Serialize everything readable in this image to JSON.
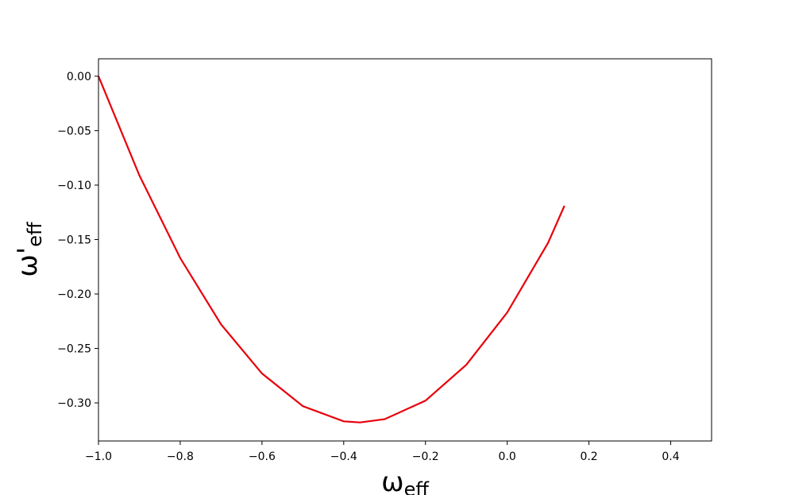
{
  "chart_data": {
    "type": "line",
    "xlabel": "ω_eff",
    "ylabel": "ω'_eff",
    "x": [
      -1.0,
      -0.9,
      -0.8,
      -0.7,
      -0.6,
      -0.5,
      -0.4,
      -0.36,
      -0.3,
      -0.2,
      -0.1,
      0.0,
      0.1,
      0.14
    ],
    "series": [
      {
        "color": "#e8000b",
        "values": [
          0.0,
          -0.091,
          -0.167,
          -0.228,
          -0.273,
          -0.303,
          -0.317,
          -0.318,
          -0.315,
          -0.298,
          -0.265,
          -0.217,
          -0.153,
          -0.119
        ]
      }
    ],
    "xlim": [
      -1.0,
      0.5
    ],
    "ylim": [
      -0.335,
      0.016
    ],
    "xticks": [
      {
        "value": -1.0,
        "label": "−1.0"
      },
      {
        "value": -0.8,
        "label": "−0.8"
      },
      {
        "value": -0.6,
        "label": "−0.6"
      },
      {
        "value": -0.4,
        "label": "−0.4"
      },
      {
        "value": -0.2,
        "label": "−0.2"
      },
      {
        "value": 0.0,
        "label": "0.0"
      },
      {
        "value": 0.2,
        "label": "0.2"
      },
      {
        "value": 0.4,
        "label": "0.4"
      }
    ],
    "yticks": [
      {
        "value": 0.0,
        "label": "0.00"
      },
      {
        "value": -0.05,
        "label": "−0.05"
      },
      {
        "value": -0.1,
        "label": "−0.10"
      },
      {
        "value": -0.15,
        "label": "−0.15"
      },
      {
        "value": -0.2,
        "label": "−0.20"
      },
      {
        "value": -0.25,
        "label": "−0.25"
      },
      {
        "value": -0.3,
        "label": "−0.30"
      }
    ],
    "grid": false
  }
}
